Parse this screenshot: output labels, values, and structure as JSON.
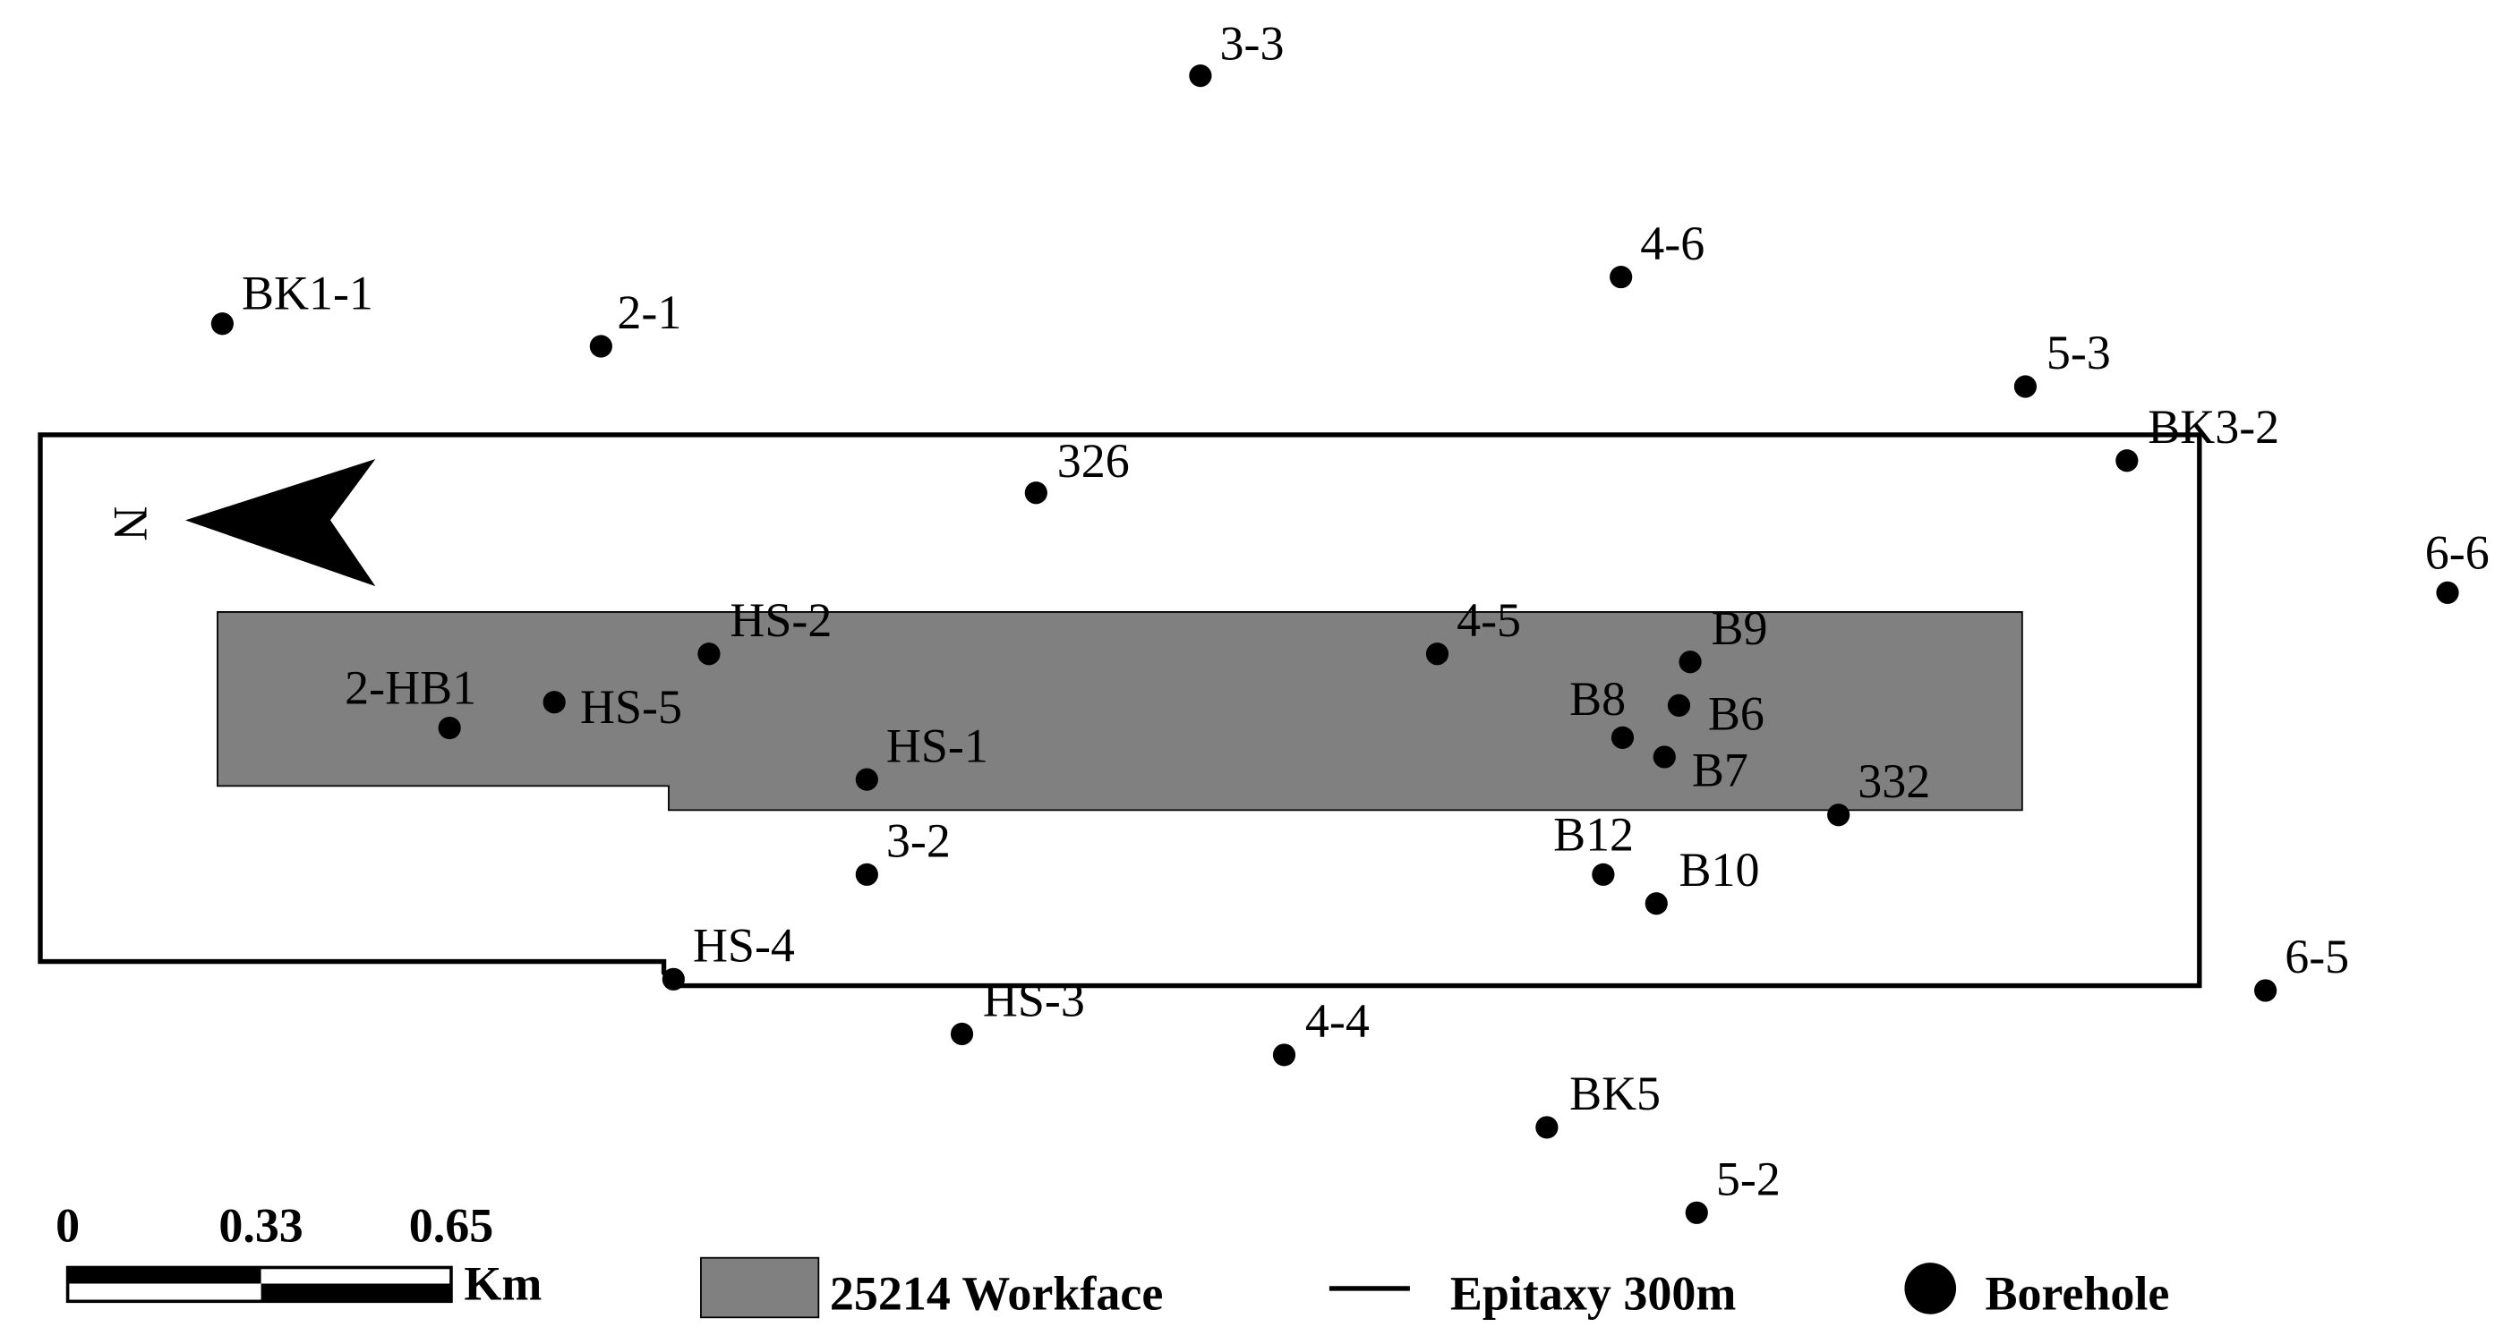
{
  "north": "N",
  "boreholes": [
    "3-3",
    "BK1-1",
    "2-1",
    "4-6",
    "5-3",
    "BK3-2",
    "326",
    "6-6",
    "HS-2",
    "4-5",
    "B9",
    "2-HB1",
    "HS-5",
    "B8",
    "B6",
    "B7",
    "HS-1",
    "332",
    "3-2",
    "B12",
    "B10",
    "HS-4",
    "6-5",
    "HS-3",
    "4-4",
    "BK5",
    "5-2"
  ],
  "scale_bar": {
    "labels": [
      "0",
      "0.33",
      "0.65"
    ],
    "unit": "Km"
  },
  "legend": {
    "workface": "25214 Workface",
    "epitaxy": "Epitaxy 300m",
    "borehole": "Borehole"
  }
}
